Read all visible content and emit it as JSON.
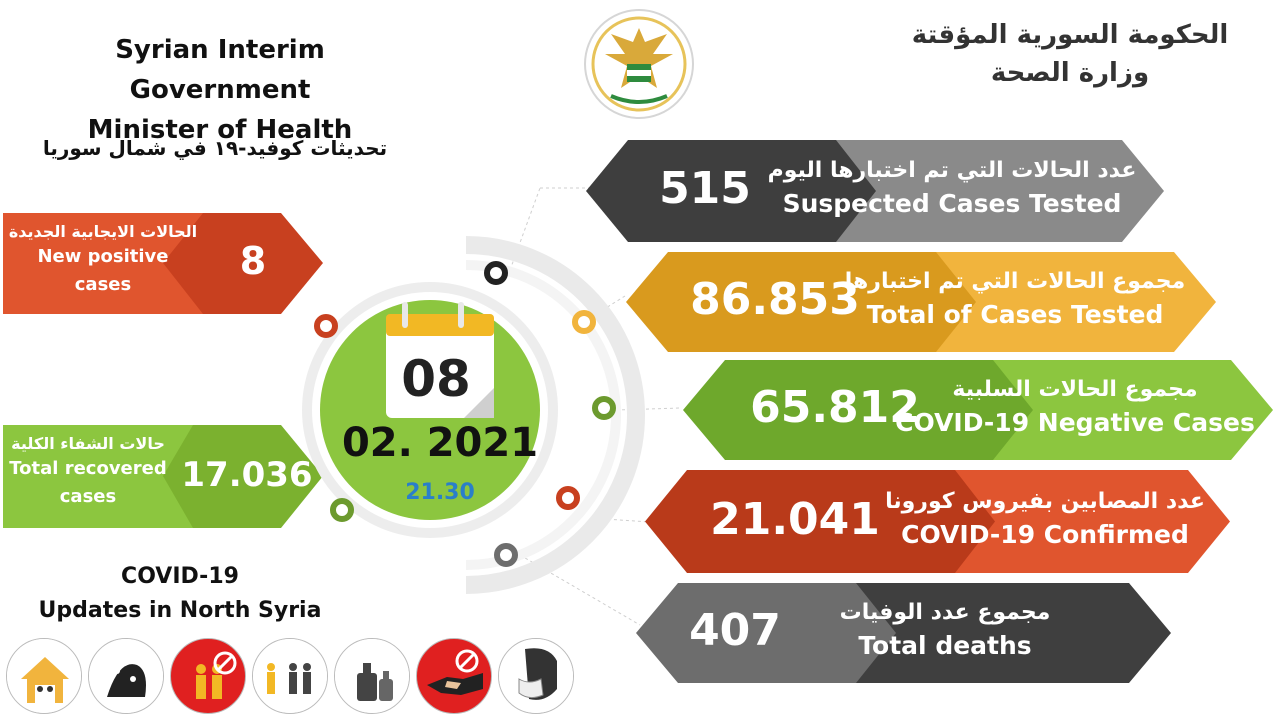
{
  "header": {
    "en_line1": "Syrian Interim Government",
    "en_line2": "Minister of Health",
    "ar_line1": "الحكومة السورية المؤقتة",
    "ar_line2": "وزارة الصحة",
    "subtitle_ar": "تحديثات كوفيد-١٩ في شمال سوريا"
  },
  "left_boxes": {
    "new_positive": {
      "ar": "الحالات الايجابية الجديدة",
      "en_1": "New positive",
      "en_2": "cases",
      "value": "8",
      "color": "#e0552e",
      "arrow_color": "#c8401f"
    },
    "recovered": {
      "ar": "حالات الشفاء الكلية",
      "en_1": "Total recovered",
      "en_2": "cases",
      "value": "17.036",
      "color": "#8cc63f",
      "arrow_color": "#7bb12f"
    }
  },
  "date": {
    "day": "08",
    "month_year": "02. 2021",
    "time": "21.30"
  },
  "banners": [
    {
      "ar": "عدد الحالات التي تم اختبارها اليوم",
      "en": "Suspected Cases Tested",
      "value": "515",
      "color": "#8a8a8a",
      "num_color": "#3e3e3e",
      "dot": "#222222"
    },
    {
      "ar": "مجموع الحالات التي تم اختبارها",
      "en": "Total of Cases Tested",
      "value": "86.853",
      "color": "#f1b43d",
      "num_color": "#d99a1e",
      "dot": "#f1b43d"
    },
    {
      "ar": "مجموع الحالات السلبية",
      "en": "COVID-19 Negative Cases",
      "value": "65.812",
      "color": "#8cc63f",
      "num_color": "#6ea82c",
      "dot": "#6c9a2e"
    },
    {
      "ar": "عدد المصابين بفيروس كورونا",
      "en": "COVID-19 Confirmed",
      "value": "21.041",
      "color": "#e0552e",
      "num_color": "#b93a1a",
      "dot": "#c8401f"
    },
    {
      "ar": "مجموع عدد الوفيات",
      "en": "Total deaths",
      "value": "407",
      "color": "#3f3f3f",
      "num_color": "#6d6d6d",
      "dot": "#6d6d6d"
    }
  ],
  "footer": {
    "line1": "COVID-19",
    "line2": "Updates in North Syria"
  },
  "icons": [
    "stay-home-icon",
    "wash-hands-icon",
    "no-gathering-icon",
    "social-distance-icon",
    "sanitizer-icon",
    "no-handshake-icon",
    "face-mask-icon"
  ]
}
